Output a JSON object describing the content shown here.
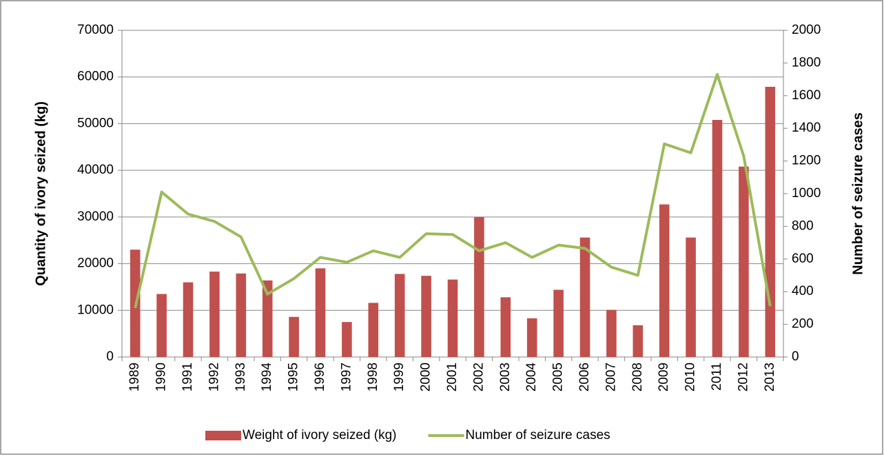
{
  "chart_data": {
    "type": "bar-line",
    "categories": [
      "1989",
      "1990",
      "1991",
      "1992",
      "1993",
      "1994",
      "1995",
      "1996",
      "1997",
      "1998",
      "1999",
      "2000",
      "2001",
      "2002",
      "2003",
      "2004",
      "2005",
      "2006",
      "2007",
      "2008",
      "2009",
      "2010",
      "2011",
      "2012",
      "2013"
    ],
    "series": [
      {
        "name": "Weight of ivory seized (kg)",
        "type": "bar",
        "color": "#c0504d",
        "axis": "y",
        "values": [
          23000,
          13500,
          16000,
          18300,
          17900,
          16400,
          8600,
          19000,
          7500,
          11600,
          17800,
          17400,
          16600,
          30000,
          12800,
          8300,
          14400,
          25600,
          10100,
          6800,
          32700,
          25600,
          50800,
          40800,
          57900
        ]
      },
      {
        "name": "Number of seizure cases",
        "type": "line",
        "color": "#9bbb59",
        "axis": "y2",
        "values": [
          300,
          1010,
          875,
          830,
          735,
          385,
          480,
          610,
          580,
          650,
          610,
          755,
          750,
          650,
          700,
          610,
          685,
          665,
          550,
          500,
          1305,
          1250,
          1730,
          1230,
          310
        ]
      }
    ],
    "ylabel": "Quantity of ivory seized (kg)",
    "y2label": "Number of seizure cases",
    "ylim": [
      0,
      70000
    ],
    "yticks": [
      0,
      10000,
      20000,
      30000,
      40000,
      50000,
      60000,
      70000
    ],
    "y2lim": [
      0,
      2000
    ],
    "y2ticks": [
      0,
      200,
      400,
      600,
      800,
      1000,
      1200,
      1400,
      1600,
      1800,
      2000
    ],
    "grid": true,
    "legend": "bottom"
  }
}
